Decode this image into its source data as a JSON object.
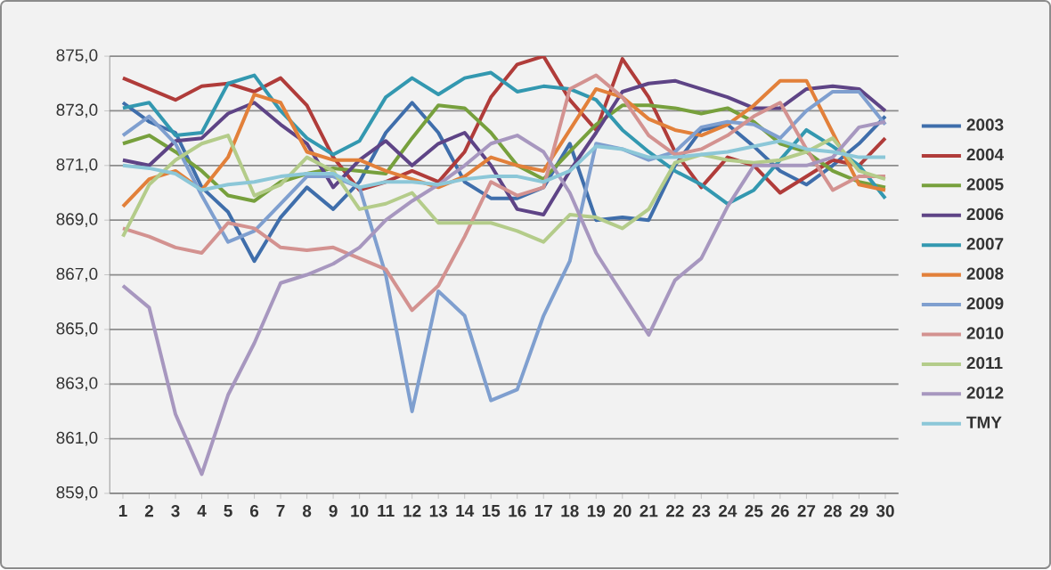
{
  "chart_data": {
    "type": "line",
    "categories": [
      "1",
      "2",
      "3",
      "4",
      "5",
      "6",
      "7",
      "8",
      "9",
      "10",
      "11",
      "12",
      "13",
      "14",
      "15",
      "16",
      "17",
      "18",
      "19",
      "20",
      "21",
      "22",
      "23",
      "24",
      "25",
      "26",
      "27",
      "28",
      "29",
      "30"
    ],
    "series": [
      {
        "name": "2003",
        "color": "#3f6eab",
        "values": [
          873.3,
          872.6,
          872.2,
          870.2,
          869.3,
          867.5,
          869.1,
          870.2,
          869.4,
          870.4,
          872.2,
          873.3,
          872.2,
          870.4,
          869.8,
          869.8,
          870.2,
          871.8,
          869.0,
          869.1,
          869.0,
          871.0,
          872.3,
          872.5,
          871.7,
          870.8,
          870.3,
          871.0,
          871.8,
          872.8
        ]
      },
      {
        "name": "2004",
        "color": "#b03c3a",
        "values": [
          874.2,
          873.8,
          873.4,
          873.9,
          874.0,
          873.7,
          874.2,
          873.2,
          871.3,
          870.1,
          870.4,
          870.8,
          870.4,
          871.5,
          873.5,
          874.7,
          875.0,
          873.4,
          872.3,
          874.9,
          873.5,
          871.5,
          870.2,
          871.3,
          871.0,
          870.0,
          870.6,
          871.2,
          871.0,
          872.0
        ]
      },
      {
        "name": "2005",
        "color": "#77a03d",
        "values": [
          871.8,
          872.1,
          871.5,
          870.8,
          869.9,
          869.7,
          870.4,
          870.7,
          870.9,
          870.8,
          870.7,
          872.0,
          873.2,
          873.1,
          872.2,
          871.0,
          870.5,
          871.5,
          872.5,
          873.2,
          873.2,
          873.1,
          872.9,
          873.1,
          872.6,
          871.8,
          871.5,
          870.8,
          870.4,
          870.2
        ]
      },
      {
        "name": "2006",
        "color": "#5e4486",
        "values": [
          871.2,
          871.0,
          871.9,
          872.0,
          872.9,
          873.3,
          872.5,
          871.8,
          870.2,
          871.2,
          871.9,
          871.0,
          871.8,
          872.2,
          871.0,
          869.4,
          869.2,
          870.8,
          872.2,
          873.7,
          874.0,
          874.1,
          873.8,
          873.5,
          873.1,
          873.1,
          873.8,
          873.9,
          873.8,
          873.0
        ]
      },
      {
        "name": "2007",
        "color": "#3398b0",
        "values": [
          873.1,
          873.3,
          872.1,
          872.2,
          874.0,
          874.3,
          873.0,
          872.0,
          871.4,
          871.9,
          873.5,
          874.2,
          873.6,
          874.2,
          874.4,
          873.7,
          873.9,
          873.8,
          873.4,
          872.3,
          871.5,
          870.8,
          870.3,
          869.6,
          870.1,
          871.2,
          872.3,
          871.7,
          871.0,
          869.8
        ]
      },
      {
        "name": "2008",
        "color": "#e2803a",
        "values": [
          869.5,
          870.5,
          870.8,
          870.1,
          871.3,
          873.6,
          873.3,
          871.5,
          871.2,
          871.2,
          870.8,
          870.5,
          870.2,
          870.6,
          871.3,
          871.0,
          870.8,
          872.3,
          873.8,
          873.5,
          872.7,
          872.3,
          872.1,
          872.5,
          873.2,
          874.1,
          874.1,
          872.2,
          870.3,
          870.1
        ]
      },
      {
        "name": "2009",
        "color": "#7f9fcf",
        "values": [
          872.1,
          872.8,
          871.8,
          869.9,
          868.2,
          868.6,
          869.6,
          870.6,
          870.6,
          870.2,
          867.0,
          862.0,
          866.4,
          865.5,
          862.4,
          862.8,
          865.5,
          867.5,
          871.8,
          871.6,
          871.2,
          871.5,
          872.4,
          872.6,
          872.5,
          872.0,
          873.0,
          873.7,
          873.7,
          872.5
        ]
      },
      {
        "name": "2010",
        "color": "#d39290",
        "values": [
          868.7,
          868.4,
          868.0,
          867.8,
          868.9,
          868.7,
          868.0,
          867.9,
          868.0,
          867.6,
          867.2,
          865.7,
          866.6,
          868.4,
          870.4,
          869.9,
          870.2,
          873.8,
          874.3,
          873.5,
          872.1,
          871.4,
          871.6,
          872.1,
          872.8,
          873.3,
          871.6,
          870.1,
          870.6,
          870.6
        ]
      },
      {
        "name": "2011",
        "color": "#b4cc8a",
        "values": [
          868.4,
          870.3,
          871.2,
          871.8,
          872.1,
          869.9,
          870.3,
          871.3,
          870.8,
          869.4,
          869.6,
          870.0,
          868.9,
          868.9,
          868.9,
          868.6,
          868.2,
          869.2,
          869.1,
          868.7,
          869.4,
          871.1,
          871.4,
          871.2,
          871.1,
          871.2,
          871.5,
          872.0,
          870.8,
          870.5
        ]
      },
      {
        "name": "2012",
        "color": "#a797bf",
        "values": [
          866.6,
          865.8,
          861.9,
          859.7,
          862.6,
          864.5,
          866.7,
          867.0,
          867.4,
          868.0,
          869.0,
          869.7,
          870.3,
          871.0,
          871.8,
          872.1,
          871.5,
          870.0,
          867.8,
          866.3,
          864.8,
          866.8,
          867.6,
          869.5,
          871.0,
          871.0,
          871.0,
          871.3,
          872.4,
          872.6
        ]
      },
      {
        "name": "TMY",
        "color": "#8cc7d8",
        "values": [
          871.0,
          870.9,
          870.7,
          870.1,
          870.3,
          870.4,
          870.6,
          870.7,
          870.7,
          870.2,
          870.4,
          870.4,
          870.3,
          870.5,
          870.6,
          870.6,
          870.4,
          870.8,
          871.7,
          871.6,
          871.3,
          871.3,
          871.4,
          871.5,
          871.7,
          871.9,
          871.6,
          871.5,
          871.3,
          871.3
        ]
      }
    ],
    "ylim": [
      859,
      875
    ],
    "yticks": [
      {
        "value": 859,
        "label": "859,0"
      },
      {
        "value": 861,
        "label": "861,0"
      },
      {
        "value": 863,
        "label": "863,0"
      },
      {
        "value": 865,
        "label": "865,0"
      },
      {
        "value": 867,
        "label": "867,0"
      },
      {
        "value": 869,
        "label": "869,0"
      },
      {
        "value": 871,
        "label": "871,0"
      },
      {
        "value": 873,
        "label": "873,0"
      },
      {
        "value": 875,
        "label": "875,0"
      }
    ],
    "grid": "y",
    "legend": "right"
  }
}
